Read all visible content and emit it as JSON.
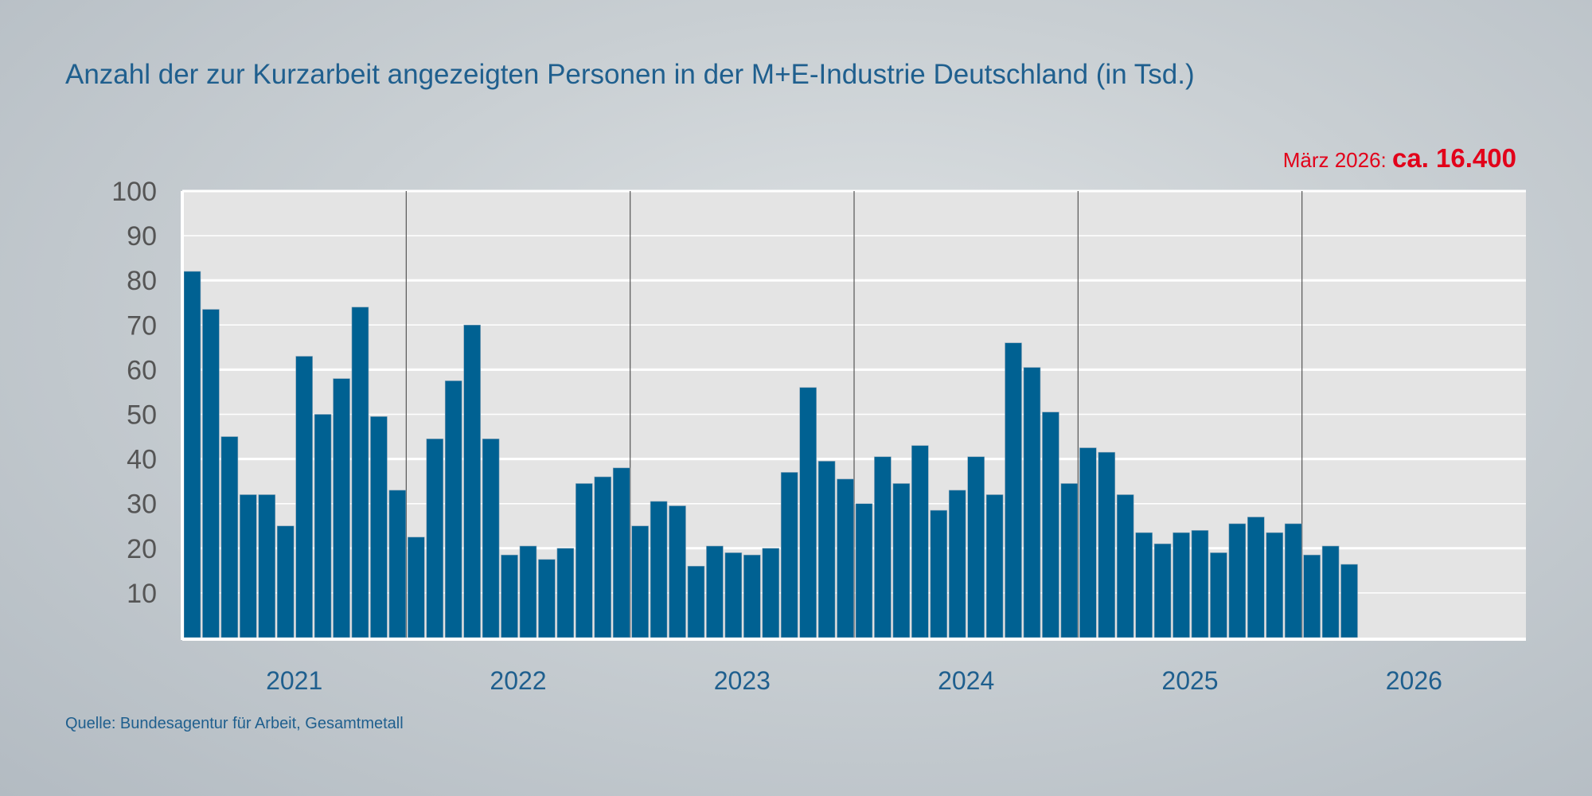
{
  "title": "Anzahl der zur Kurzarbeit angezeigten Personen in der M+E-Industrie Deutschland (in Tsd.)",
  "annotation": {
    "label": "März 2026:",
    "value": "ca. 16.400"
  },
  "source": "Quelle: Bundesagentur für Arbeit, Gesamtmetall",
  "colors": {
    "bar": "#006192",
    "annotation": "#e2001a",
    "title": "#1f5f8e",
    "plot_bg": "#e4e4e4"
  },
  "chart_data": {
    "type": "bar",
    "title": "Anzahl der zur Kurzarbeit angezeigten Personen in der M+E-Industrie Deutschland (in Tsd.)",
    "xlabel": "",
    "ylabel": "",
    "ylim": [
      0,
      100
    ],
    "yticks": [
      10,
      20,
      30,
      40,
      50,
      60,
      70,
      80,
      90,
      100
    ],
    "grid": true,
    "years": [
      "2021",
      "2022",
      "2023",
      "2024",
      "2025",
      "2026"
    ],
    "frequency": "monthly",
    "values": [
      82,
      73.5,
      45,
      32,
      32,
      25,
      63,
      50,
      58,
      74,
      49.5,
      33,
      22.5,
      44.5,
      57.5,
      70,
      44.5,
      18.5,
      20.5,
      17.5,
      20,
      34.5,
      36,
      38,
      25,
      30.5,
      29.5,
      16,
      20.5,
      19,
      18.5,
      20,
      37,
      56,
      39.5,
      35.5,
      30,
      40.5,
      34.5,
      43,
      28.5,
      33,
      40.5,
      32,
      66,
      60.5,
      50.5,
      34.5,
      42.5,
      41.5,
      32,
      23.5,
      21,
      23.5,
      24,
      19,
      25.5,
      27,
      23.5,
      25.5,
      18.5,
      20.5,
      16.4
    ]
  }
}
